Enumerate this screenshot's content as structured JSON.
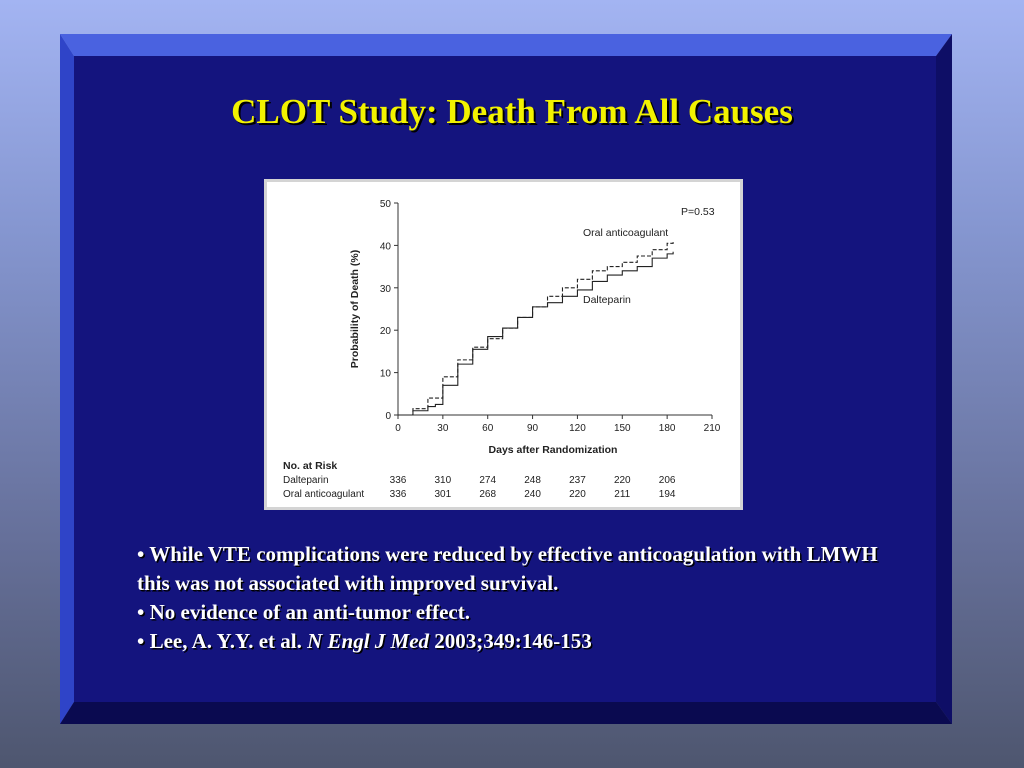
{
  "slide": {
    "title": "CLOT Study: Death From All Causes",
    "bullets": {
      "b1": "• While VTE complications were reduced by effective anticoagulation with LMWH this was not associated with improved survival.",
      "b2": "• No evidence of an anti-tumor effect.",
      "b3_prefix": "• Lee, A. Y.Y. et al. ",
      "b3_journal": "N Engl J Med",
      "b3_suffix": " 2003;349:146-153"
    },
    "colors": {
      "panel": "#14147e",
      "title": "#f2f200",
      "text": "#ffffff"
    }
  },
  "chart_data": {
    "type": "line",
    "xlabel": "Days after Randomization",
    "ylabel": "Probability of Death (%)",
    "xlim": [
      0,
      210
    ],
    "ylim": [
      0,
      50
    ],
    "x_ticks": [
      0,
      30,
      60,
      90,
      120,
      150,
      180,
      210
    ],
    "y_ticks": [
      0,
      10,
      20,
      30,
      40,
      50
    ],
    "p_value": "P=0.53",
    "series": [
      {
        "name": "Oral anticoagulant",
        "style": "dashed",
        "x": [
          0,
          10,
          20,
          30,
          40,
          50,
          60,
          70,
          80,
          90,
          100,
          110,
          120,
          130,
          140,
          150,
          160,
          170,
          180,
          184
        ],
        "y": [
          0,
          1.5,
          4,
          9,
          13,
          16,
          18,
          20.5,
          23,
          25.5,
          28,
          30,
          32,
          34,
          35,
          36,
          37.5,
          39,
          40.5,
          41
        ]
      },
      {
        "name": "Dalteparin",
        "style": "solid",
        "x": [
          0,
          10,
          20,
          25,
          30,
          40,
          50,
          60,
          70,
          80,
          90,
          100,
          110,
          120,
          130,
          140,
          150,
          160,
          170,
          180,
          184
        ],
        "y": [
          0,
          1,
          2,
          2.5,
          7,
          12,
          15.5,
          18.5,
          20.5,
          23,
          25.5,
          26.5,
          28,
          29.5,
          31.5,
          33,
          34,
          35,
          37,
          38,
          38.5
        ]
      }
    ],
    "risk_table": {
      "header": "No. at Risk",
      "rows": [
        {
          "label": "Dalteparin",
          "values": [
            "336",
            "310",
            "274",
            "248",
            "237",
            "220",
            "206"
          ]
        },
        {
          "label": "Oral anticoagulant",
          "values": [
            "336",
            "301",
            "268",
            "240",
            "220",
            "211",
            "194"
          ]
        }
      ]
    }
  }
}
